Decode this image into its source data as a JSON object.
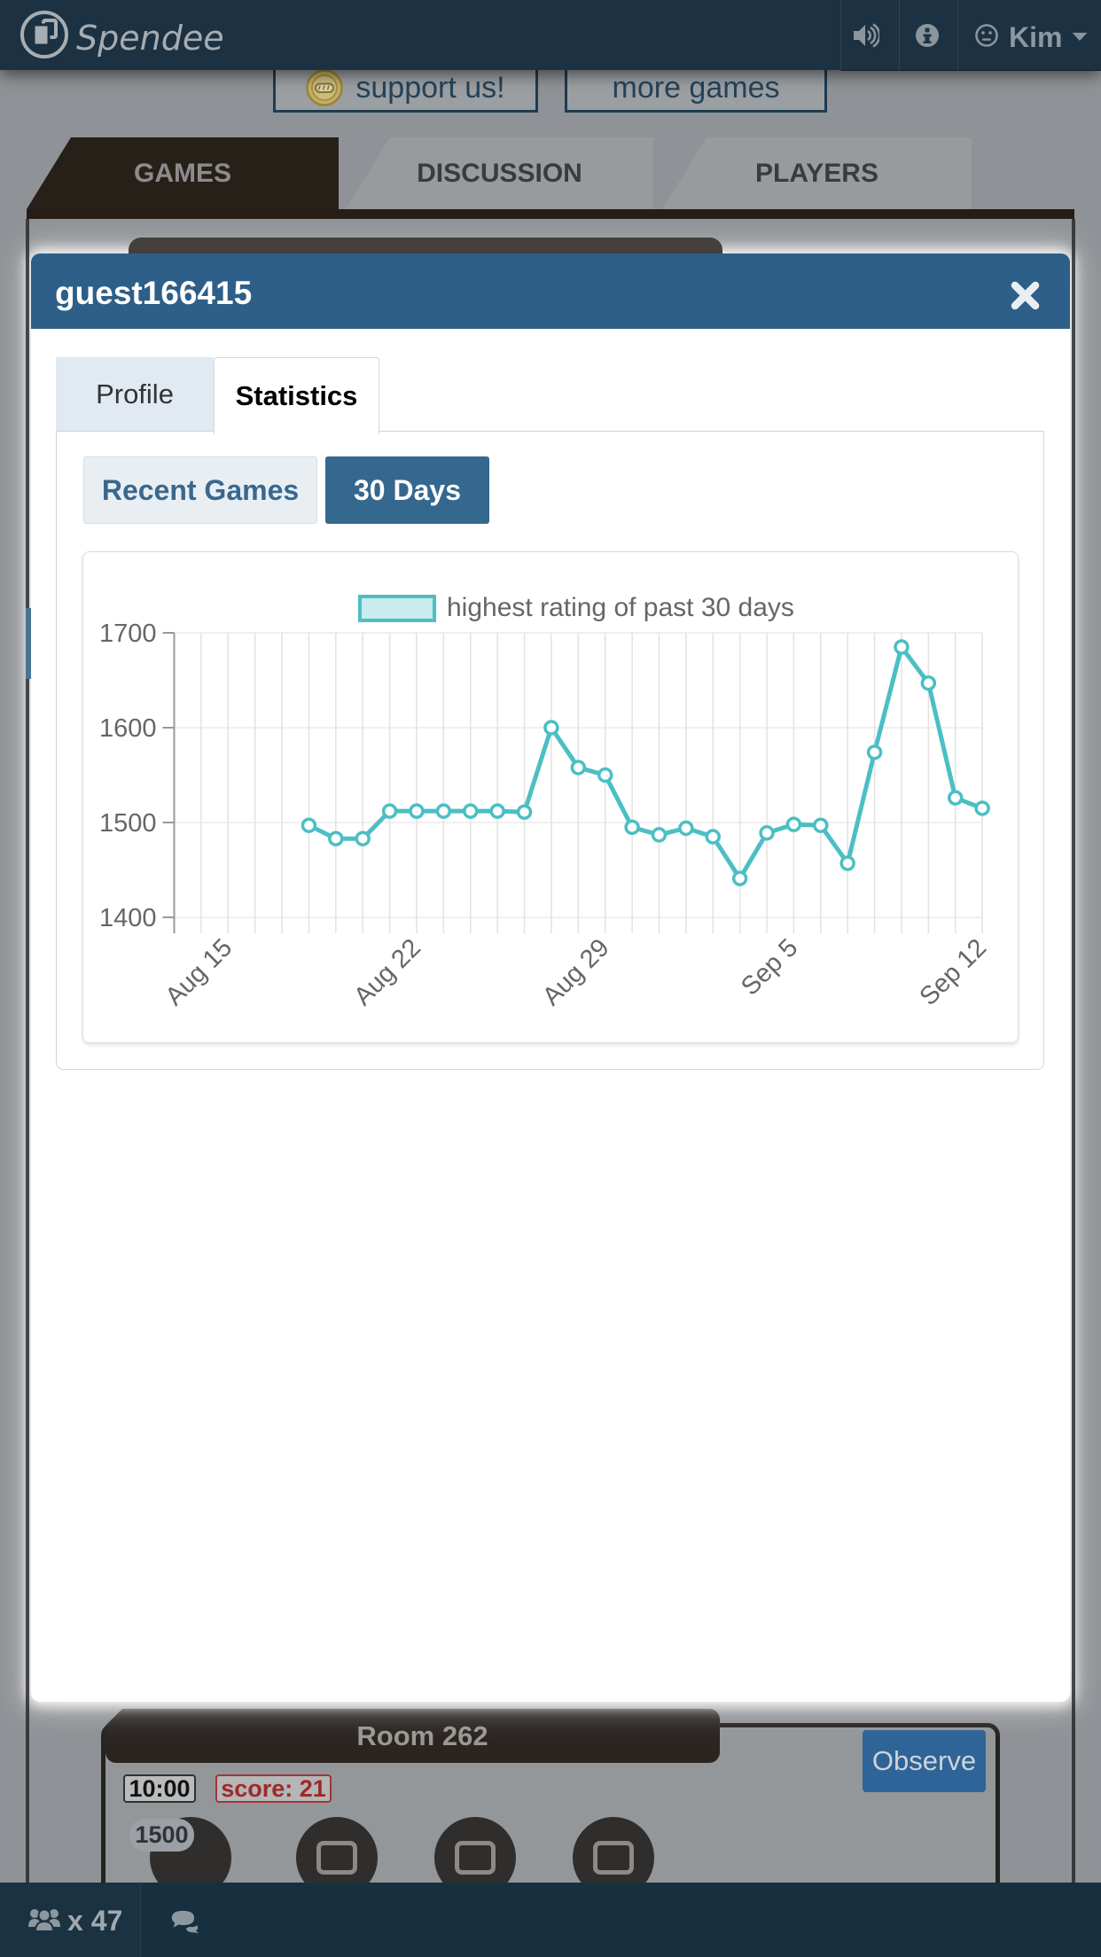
{
  "top_nav": {
    "brand": "Spendee",
    "user": {
      "name": "Kim"
    }
  },
  "promo": {
    "support_label": "support us!",
    "more_games_label": "more games"
  },
  "main_tabs": [
    {
      "label": "GAMES",
      "active": true
    },
    {
      "label": "DISCUSSION",
      "active": false
    },
    {
      "label": "PLAYERS",
      "active": false
    }
  ],
  "dialog": {
    "title": "guest166415",
    "close_icon": "x-mark-icon",
    "tabs": [
      {
        "label": "Profile",
        "active": false
      },
      {
        "label": "Statistics",
        "active": true
      }
    ],
    "filters": [
      {
        "label": "Recent Games",
        "active": false
      },
      {
        "label": "30 Days",
        "active": true
      }
    ]
  },
  "chart_data": {
    "type": "line",
    "legend": "highest rating of past 30 days",
    "title": "",
    "xlabel": "",
    "ylabel": "",
    "ylim": [
      1400,
      1700
    ],
    "y_ticks": [
      1400,
      1500,
      1600,
      1700
    ],
    "x_axis_days": 30,
    "x_ticks": [
      {
        "day": 2,
        "label": "Aug 15"
      },
      {
        "day": 9,
        "label": "Aug 22"
      },
      {
        "day": 16,
        "label": "Aug 29"
      },
      {
        "day": 23,
        "label": "Sep 5"
      },
      {
        "day": 30,
        "label": "Sep 12"
      }
    ],
    "grid": true,
    "legend_position": "top",
    "series": [
      {
        "name": "highest rating of past 30 days",
        "start_day": 5,
        "values": [
          1497,
          1483,
          1483,
          1512,
          1512,
          1512,
          1512,
          1512,
          1511,
          1600,
          1558,
          1550,
          1495,
          1487,
          1494,
          1485,
          1441,
          1489,
          1498,
          1497,
          1457,
          1574,
          1685,
          1647,
          1526,
          1515
        ]
      }
    ],
    "line_color": "#4bbfc4",
    "marker_fill": "#ffffff",
    "grid_color": "#e2e2e2",
    "axis_color": "#999999",
    "label_color": "#666666"
  },
  "room": {
    "title": "Room 262",
    "observe_label": "Observe",
    "time": "10:00",
    "score": "score: 21",
    "rating": "1500"
  },
  "status_bar": {
    "users_count": "x 47"
  },
  "colors": {
    "nav_bg": "#1c3242",
    "modal_header_bg": "#2d5f88",
    "accent_blue": "#35688f",
    "chart_teal": "#4bbfc4",
    "score_red": "#9f2929"
  }
}
